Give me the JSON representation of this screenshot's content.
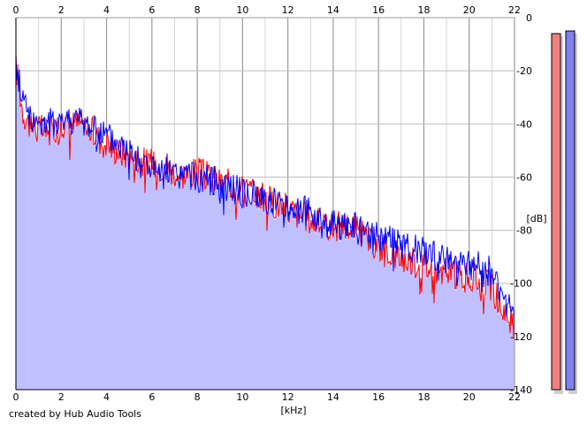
{
  "chart_data": {
    "type": "area",
    "title": "",
    "xlabel": "[kHz]",
    "ylabel": "[dB]",
    "xlim": [
      0,
      22
    ],
    "ylim": [
      -140,
      0
    ],
    "x_ticks": [
      "0",
      "2",
      "4",
      "6",
      "8",
      "10",
      "12",
      "14",
      "16",
      "18",
      "20",
      "22"
    ],
    "y_ticks": [
      "0",
      "-20",
      "-40",
      "-60",
      "-80",
      "-100",
      "-120",
      "-140"
    ],
    "grid": true,
    "series": [
      {
        "color": "#ff0000",
        "fill": "#c0c0ff",
        "x": [
          0,
          0.3,
          0.6,
          1,
          1.5,
          2,
          2.5,
          3,
          3.5,
          4,
          4.5,
          5,
          5.5,
          6,
          6.5,
          7,
          7.5,
          8,
          8.5,
          9,
          9.5,
          10,
          10.5,
          11,
          11.5,
          12,
          12.5,
          13,
          13.5,
          14,
          14.5,
          15,
          15.5,
          16,
          16.5,
          17,
          17.5,
          18,
          18.5,
          19,
          19.5,
          20,
          20.5,
          21,
          21.3,
          21.6,
          22
        ],
        "values": [
          -18,
          -35,
          -40,
          -42,
          -43,
          -40,
          -40,
          -40,
          -44,
          -48,
          -50,
          -52,
          -54,
          -55,
          -56,
          -58,
          -59,
          -58,
          -60,
          -62,
          -63,
          -64,
          -66,
          -68,
          -70,
          -72,
          -74,
          -76,
          -78,
          -79,
          -78,
          -79,
          -84,
          -86,
          -88,
          -90,
          -92,
          -93,
          -95,
          -96,
          -97,
          -98,
          -99,
          -101,
          -107,
          -111,
          -116
        ]
      },
      {
        "color": "#0000ff",
        "x": [
          0,
          0.3,
          0.6,
          1,
          1.5,
          2,
          2.5,
          3,
          3.5,
          4,
          4.5,
          5,
          5.5,
          6,
          6.5,
          7,
          7.5,
          8,
          8.5,
          9,
          9.5,
          10,
          10.5,
          11,
          11.5,
          12,
          12.5,
          13,
          13.5,
          14,
          14.5,
          15,
          15.5,
          16,
          16.5,
          17,
          17.5,
          18,
          18.5,
          19,
          19.5,
          20,
          20.5,
          21,
          21.3,
          21.6,
          22
        ],
        "values": [
          -18,
          -30,
          -36,
          -40,
          -40,
          -38,
          -38,
          -40,
          -42,
          -45,
          -48,
          -50,
          -54,
          -57,
          -59,
          -60,
          -60,
          -60,
          -61,
          -62,
          -64,
          -66,
          -67,
          -68,
          -70,
          -71,
          -72,
          -74,
          -76,
          -78,
          -78,
          -79,
          -82,
          -83,
          -84,
          -86,
          -87,
          -88,
          -90,
          -91,
          -92,
          -93,
          -94,
          -96,
          -102,
          -108,
          -114
        ]
      }
    ],
    "level_meters": [
      {
        "color": "#f08080",
        "level": -6
      },
      {
        "color": "#8080f0",
        "level": -5
      }
    ]
  },
  "footer": {
    "credit": "created by Hub Audio Tools"
  }
}
